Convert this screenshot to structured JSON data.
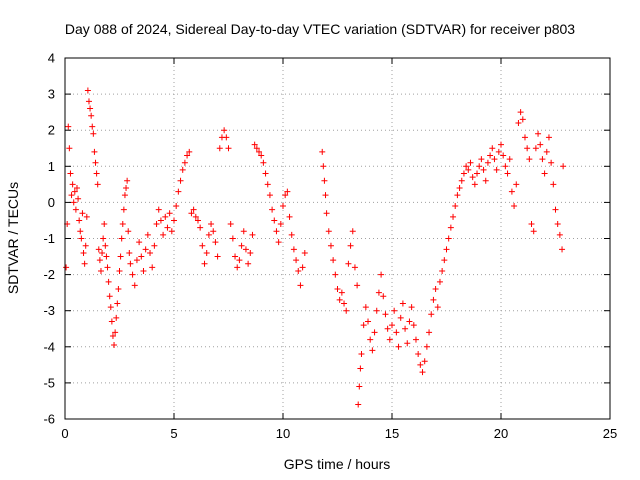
{
  "chart_data": {
    "type": "scatter",
    "title": "Day 088 of 2024, Sidereal Day-to-day VTEC variation (SDTVAR) for receiver p803",
    "xlabel": "GPS time / hours",
    "ylabel": "SDTVAR / TECUs",
    "xlim": [
      0,
      25
    ],
    "ylim": [
      -6,
      4
    ],
    "xticks": [
      0,
      5,
      10,
      15,
      20,
      25
    ],
    "yticks": [
      4,
      3,
      2,
      1,
      0,
      -1,
      -2,
      -3,
      -4,
      -5,
      -6
    ],
    "grid": true,
    "marker": "+",
    "color": "#ff0000",
    "series": [
      {
        "name": "SDTVAR",
        "points": [
          [
            0.05,
            -1.8
          ],
          [
            0.1,
            -0.6
          ],
          [
            0.15,
            2.1
          ],
          [
            0.2,
            1.5
          ],
          [
            0.25,
            0.8
          ],
          [
            0.3,
            0.2
          ],
          [
            0.35,
            0.5
          ],
          [
            0.4,
            0.0
          ],
          [
            0.45,
            0.3
          ],
          [
            0.5,
            -0.2
          ],
          [
            0.55,
            0.4
          ],
          [
            0.6,
            0.1
          ],
          [
            0.65,
            -0.5
          ],
          [
            0.7,
            -0.8
          ],
          [
            0.75,
            -1.0
          ],
          [
            0.8,
            -0.3
          ],
          [
            0.85,
            -1.4
          ],
          [
            0.9,
            -1.7
          ],
          [
            0.95,
            -1.2
          ],
          [
            1.0,
            -0.4
          ],
          [
            1.05,
            3.1
          ],
          [
            1.1,
            2.8
          ],
          [
            1.15,
            2.6
          ],
          [
            1.2,
            2.4
          ],
          [
            1.25,
            2.1
          ],
          [
            1.3,
            1.9
          ],
          [
            1.35,
            1.4
          ],
          [
            1.4,
            1.1
          ],
          [
            1.45,
            0.8
          ],
          [
            1.5,
            0.5
          ],
          [
            1.55,
            -1.3
          ],
          [
            1.6,
            -1.6
          ],
          [
            1.65,
            -1.9
          ],
          [
            1.7,
            -1.4
          ],
          [
            1.75,
            -1.0
          ],
          [
            1.8,
            -0.6
          ],
          [
            1.85,
            -1.2
          ],
          [
            1.9,
            -1.5
          ],
          [
            1.95,
            -1.8
          ],
          [
            2.0,
            -2.2
          ],
          [
            2.05,
            -2.6
          ],
          [
            2.1,
            -2.9
          ],
          [
            2.15,
            -3.3
          ],
          [
            2.2,
            -3.7
          ],
          [
            2.25,
            -3.95
          ],
          [
            2.3,
            -3.6
          ],
          [
            2.35,
            -3.2
          ],
          [
            2.4,
            -2.8
          ],
          [
            2.45,
            -2.4
          ],
          [
            2.5,
            -1.9
          ],
          [
            2.55,
            -1.5
          ],
          [
            2.6,
            -1.0
          ],
          [
            2.65,
            -0.6
          ],
          [
            2.7,
            -0.2
          ],
          [
            2.75,
            0.2
          ],
          [
            2.8,
            0.4
          ],
          [
            2.85,
            0.6
          ],
          [
            2.9,
            -0.8
          ],
          [
            2.95,
            -1.4
          ],
          [
            3.0,
            -1.7
          ],
          [
            3.1,
            -2.0
          ],
          [
            3.2,
            -2.3
          ],
          [
            3.3,
            -1.6
          ],
          [
            3.4,
            -1.1
          ],
          [
            3.5,
            -1.5
          ],
          [
            3.6,
            -1.9
          ],
          [
            3.7,
            -1.3
          ],
          [
            3.8,
            -0.9
          ],
          [
            3.9,
            -1.4
          ],
          [
            4.0,
            -1.8
          ],
          [
            4.1,
            -1.2
          ],
          [
            4.2,
            -0.6
          ],
          [
            4.3,
            -0.2
          ],
          [
            4.4,
            -0.5
          ],
          [
            4.5,
            -0.9
          ],
          [
            4.6,
            -0.4
          ],
          [
            4.7,
            -0.7
          ],
          [
            4.8,
            -0.3
          ],
          [
            4.9,
            -0.8
          ],
          [
            5.0,
            -0.5
          ],
          [
            5.1,
            -0.1
          ],
          [
            5.2,
            0.3
          ],
          [
            5.3,
            0.6
          ],
          [
            5.4,
            0.9
          ],
          [
            5.5,
            1.1
          ],
          [
            5.6,
            1.3
          ],
          [
            5.7,
            1.4
          ],
          [
            5.8,
            -0.3
          ],
          [
            5.9,
            -0.2
          ],
          [
            6.0,
            -0.4
          ],
          [
            6.1,
            -0.5
          ],
          [
            6.2,
            -0.7
          ],
          [
            6.3,
            -1.2
          ],
          [
            6.4,
            -1.7
          ],
          [
            6.5,
            -1.4
          ],
          [
            6.6,
            -0.9
          ],
          [
            6.7,
            -0.6
          ],
          [
            6.8,
            -0.8
          ],
          [
            6.9,
            -1.1
          ],
          [
            7.0,
            -1.5
          ],
          [
            7.1,
            1.5
          ],
          [
            7.2,
            1.8
          ],
          [
            7.3,
            2.0
          ],
          [
            7.4,
            1.8
          ],
          [
            7.5,
            1.5
          ],
          [
            7.6,
            -0.6
          ],
          [
            7.7,
            -1.0
          ],
          [
            7.8,
            -1.5
          ],
          [
            7.9,
            -1.8
          ],
          [
            8.0,
            -1.6
          ],
          [
            8.1,
            -1.2
          ],
          [
            8.2,
            -0.8
          ],
          [
            8.3,
            -1.3
          ],
          [
            8.4,
            -1.7
          ],
          [
            8.5,
            -1.4
          ],
          [
            8.6,
            -0.9
          ],
          [
            8.7,
            1.6
          ],
          [
            8.8,
            1.5
          ],
          [
            8.9,
            1.4
          ],
          [
            9.0,
            1.3
          ],
          [
            9.1,
            1.1
          ],
          [
            9.2,
            0.8
          ],
          [
            9.3,
            0.5
          ],
          [
            9.4,
            0.2
          ],
          [
            9.5,
            -0.2
          ],
          [
            9.6,
            -0.5
          ],
          [
            9.7,
            -0.8
          ],
          [
            9.8,
            -1.1
          ],
          [
            9.9,
            -0.6
          ],
          [
            10.0,
            -0.1
          ],
          [
            10.1,
            0.2
          ],
          [
            10.2,
            0.3
          ],
          [
            10.3,
            -0.4
          ],
          [
            10.4,
            -0.9
          ],
          [
            10.5,
            -1.3
          ],
          [
            10.6,
            -1.6
          ],
          [
            10.7,
            -1.9
          ],
          [
            10.8,
            -2.3
          ],
          [
            10.9,
            -1.8
          ],
          [
            11.0,
            -1.4
          ],
          [
            11.8,
            1.4
          ],
          [
            11.85,
            1.0
          ],
          [
            11.9,
            0.6
          ],
          [
            11.95,
            0.2
          ],
          [
            12.0,
            -0.3
          ],
          [
            12.1,
            -0.8
          ],
          [
            12.2,
            -1.2
          ],
          [
            12.3,
            -1.6
          ],
          [
            12.4,
            -2.0
          ],
          [
            12.5,
            -2.4
          ],
          [
            12.6,
            -2.7
          ],
          [
            12.7,
            -2.5
          ],
          [
            12.8,
            -2.8
          ],
          [
            12.9,
            -3.0
          ],
          [
            13.0,
            -1.7
          ],
          [
            13.1,
            -1.2
          ],
          [
            13.2,
            -0.8
          ],
          [
            13.3,
            -1.8
          ],
          [
            13.4,
            -2.3
          ],
          [
            13.45,
            -5.6
          ],
          [
            13.5,
            -5.1
          ],
          [
            13.55,
            -4.6
          ],
          [
            13.6,
            -4.2
          ],
          [
            13.7,
            -3.4
          ],
          [
            13.8,
            -2.9
          ],
          [
            13.9,
            -3.3
          ],
          [
            14.0,
            -3.8
          ],
          [
            14.1,
            -4.1
          ],
          [
            14.2,
            -3.6
          ],
          [
            14.3,
            -3.0
          ],
          [
            14.4,
            -2.5
          ],
          [
            14.5,
            -2.0
          ],
          [
            14.6,
            -2.6
          ],
          [
            14.7,
            -3.1
          ],
          [
            14.8,
            -3.5
          ],
          [
            14.9,
            -3.8
          ],
          [
            15.0,
            -3.4
          ],
          [
            15.1,
            -3.0
          ],
          [
            15.2,
            -3.6
          ],
          [
            15.3,
            -4.0
          ],
          [
            15.4,
            -3.2
          ],
          [
            15.5,
            -2.8
          ],
          [
            15.6,
            -3.5
          ],
          [
            15.7,
            -3.9
          ],
          [
            15.8,
            -3.3
          ],
          [
            15.9,
            -2.9
          ],
          [
            16.0,
            -3.4
          ],
          [
            16.1,
            -3.8
          ],
          [
            16.2,
            -4.2
          ],
          [
            16.3,
            -4.5
          ],
          [
            16.4,
            -4.7
          ],
          [
            16.5,
            -4.4
          ],
          [
            16.6,
            -4.0
          ],
          [
            16.7,
            -3.6
          ],
          [
            16.8,
            -3.1
          ],
          [
            16.9,
            -2.7
          ],
          [
            17.0,
            -2.4
          ],
          [
            17.1,
            -2.9
          ],
          [
            17.2,
            -2.2
          ],
          [
            17.3,
            -1.9
          ],
          [
            17.4,
            -1.6
          ],
          [
            17.5,
            -1.3
          ],
          [
            17.6,
            -1.0
          ],
          [
            17.7,
            -0.7
          ],
          [
            17.8,
            -0.4
          ],
          [
            17.9,
            -0.1
          ],
          [
            18.0,
            0.2
          ],
          [
            18.1,
            0.4
          ],
          [
            18.2,
            0.6
          ],
          [
            18.3,
            0.8
          ],
          [
            18.4,
            1.0
          ],
          [
            18.5,
            0.9
          ],
          [
            18.6,
            1.1
          ],
          [
            18.7,
            0.7
          ],
          [
            18.8,
            0.5
          ],
          [
            18.9,
            0.8
          ],
          [
            19.0,
            1.0
          ],
          [
            19.1,
            1.2
          ],
          [
            19.2,
            0.9
          ],
          [
            19.3,
            0.6
          ],
          [
            19.4,
            1.1
          ],
          [
            19.5,
            1.3
          ],
          [
            19.6,
            1.5
          ],
          [
            19.7,
            1.2
          ],
          [
            19.8,
            0.9
          ],
          [
            19.9,
            1.4
          ],
          [
            20.0,
            1.6
          ],
          [
            20.1,
            1.3
          ],
          [
            20.2,
            1.0
          ],
          [
            20.3,
            0.8
          ],
          [
            20.4,
            1.2
          ],
          [
            20.5,
            0.3
          ],
          [
            20.6,
            -0.1
          ],
          [
            20.7,
            0.5
          ],
          [
            20.8,
            2.2
          ],
          [
            20.9,
            2.5
          ],
          [
            21.0,
            2.3
          ],
          [
            21.1,
            1.8
          ],
          [
            21.2,
            1.5
          ],
          [
            21.3,
            1.2
          ],
          [
            21.4,
            -0.6
          ],
          [
            21.5,
            -0.8
          ],
          [
            21.6,
            1.5
          ],
          [
            21.7,
            1.9
          ],
          [
            21.8,
            1.6
          ],
          [
            21.9,
            1.2
          ],
          [
            22.0,
            0.8
          ],
          [
            22.1,
            1.4
          ],
          [
            22.2,
            1.8
          ],
          [
            22.3,
            1.1
          ],
          [
            22.4,
            0.5
          ],
          [
            22.5,
            -0.2
          ],
          [
            22.6,
            -0.6
          ],
          [
            22.7,
            -0.9
          ],
          [
            22.8,
            -1.3
          ],
          [
            22.85,
            1.0
          ]
        ]
      }
    ]
  }
}
